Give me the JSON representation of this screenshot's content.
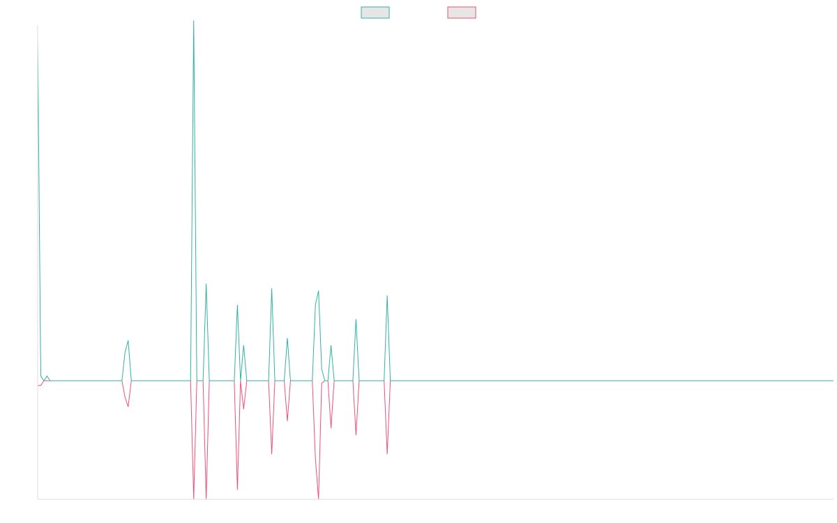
{
  "chart_data": {
    "type": "line",
    "title": "",
    "xlabel": "",
    "ylabel": "",
    "legend_position": "top-center",
    "grid": false,
    "x_count": 256,
    "ylim": [
      -50,
      150
    ],
    "series": [
      {
        "color": "#30b2a6",
        "fill": "#e6e6e6",
        "points": [
          [
            0,
            145
          ],
          [
            1,
            2
          ],
          [
            2,
            0
          ],
          [
            3,
            2
          ],
          [
            4,
            0
          ],
          [
            5,
            0
          ],
          [
            6,
            0
          ],
          [
            27,
            0
          ],
          [
            28,
            12
          ],
          [
            29,
            17
          ],
          [
            30,
            0
          ],
          [
            37,
            0
          ],
          [
            38,
            0
          ],
          [
            41,
            0
          ],
          [
            42,
            0
          ],
          [
            49,
            0
          ],
          [
            50,
            152
          ],
          [
            51,
            0
          ],
          [
            53,
            0
          ],
          [
            54,
            41
          ],
          [
            55,
            0
          ],
          [
            63,
            0
          ],
          [
            64,
            32
          ],
          [
            65,
            0
          ],
          [
            66,
            15
          ],
          [
            67,
            0
          ],
          [
            74,
            0
          ],
          [
            75,
            39
          ],
          [
            76,
            0
          ],
          [
            79,
            0
          ],
          [
            80,
            18
          ],
          [
            81,
            0
          ],
          [
            88,
            0
          ],
          [
            89,
            32
          ],
          [
            90,
            38
          ],
          [
            91,
            5
          ],
          [
            92,
            0
          ],
          [
            93,
            0
          ],
          [
            94,
            15
          ],
          [
            95,
            0
          ],
          [
            101,
            0
          ],
          [
            102,
            26
          ],
          [
            103,
            0
          ],
          [
            111,
            0
          ],
          [
            112,
            36
          ],
          [
            113,
            0
          ],
          [
            255,
            0
          ]
        ]
      },
      {
        "color": "#ef4f78",
        "fill": "#e6e6e6",
        "points": [
          [
            0,
            -2
          ],
          [
            1,
            -2
          ],
          [
            2,
            0
          ],
          [
            3,
            0
          ],
          [
            4,
            0
          ],
          [
            5,
            0
          ],
          [
            6,
            0
          ],
          [
            27,
            0
          ],
          [
            28,
            -7
          ],
          [
            29,
            -11
          ],
          [
            30,
            0
          ],
          [
            37,
            0
          ],
          [
            38,
            0
          ],
          [
            41,
            0
          ],
          [
            42,
            0
          ],
          [
            49,
            0
          ],
          [
            50,
            -50
          ],
          [
            51,
            0
          ],
          [
            53,
            0
          ],
          [
            54,
            -50
          ],
          [
            55,
            0
          ],
          [
            63,
            0
          ],
          [
            64,
            -46
          ],
          [
            65,
            0
          ],
          [
            66,
            -12
          ],
          [
            67,
            0
          ],
          [
            74,
            0
          ],
          [
            75,
            -31
          ],
          [
            76,
            0
          ],
          [
            79,
            0
          ],
          [
            80,
            -17
          ],
          [
            81,
            0
          ],
          [
            88,
            0
          ],
          [
            89,
            -33
          ],
          [
            90,
            -50
          ],
          [
            91,
            -1
          ],
          [
            92,
            0
          ],
          [
            93,
            0
          ],
          [
            94,
            -20
          ],
          [
            95,
            0
          ],
          [
            101,
            0
          ],
          [
            102,
            -23
          ],
          [
            103,
            0
          ],
          [
            111,
            0
          ],
          [
            112,
            -31
          ],
          [
            113,
            0
          ],
          [
            255,
            0
          ]
        ]
      }
    ]
  }
}
